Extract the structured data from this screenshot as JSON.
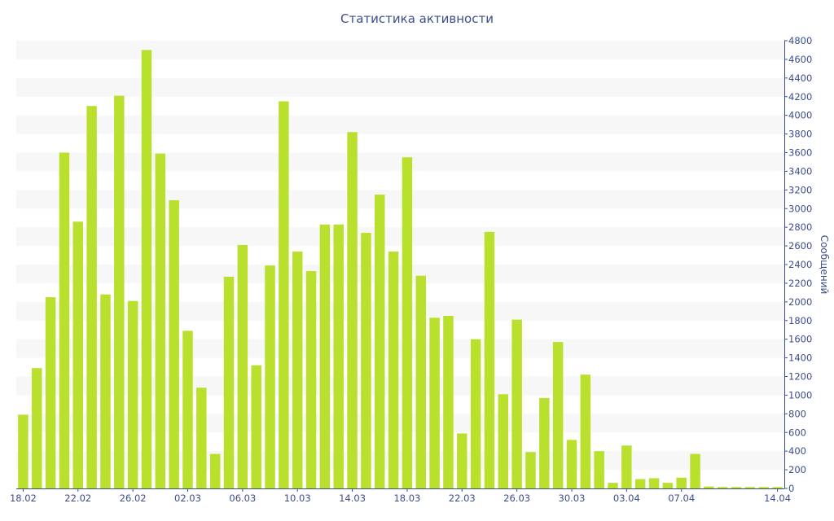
{
  "chart_data": {
    "type": "bar",
    "title": "Статистика активности",
    "xlabel": "",
    "ylabel": "Сообщений",
    "ylim": [
      0,
      4800
    ],
    "y_tick_step": 200,
    "grid": "horizontal alternating bands",
    "legend": "none",
    "y_axis_position": "right",
    "bar_color": "#b8e02c",
    "band_color": "#f7f7f7",
    "text_color": "#3c4d8c",
    "categories": [
      "18.02",
      "19.02",
      "20.02",
      "21.02",
      "22.02",
      "23.02",
      "24.02",
      "25.02",
      "26.02",
      "27.02",
      "28.02",
      "01.03",
      "02.03",
      "03.03",
      "04.03",
      "05.03",
      "06.03",
      "07.03",
      "08.03",
      "09.03",
      "10.03",
      "11.03",
      "12.03",
      "13.03",
      "14.03",
      "15.03",
      "16.03",
      "17.03",
      "18.03",
      "19.03",
      "20.03",
      "21.03",
      "22.03",
      "23.03",
      "24.03",
      "25.03",
      "26.03",
      "27.03",
      "28.03",
      "29.03",
      "30.03",
      "31.03",
      "01.04",
      "02.04",
      "03.04",
      "04.04",
      "05.04",
      "06.04",
      "07.04",
      "08.04",
      "09.04",
      "10.04",
      "11.04",
      "12.04",
      "13.04",
      "14.04"
    ],
    "x_tick_labels": [
      "18.02",
      "22.02",
      "26.02",
      "02.03",
      "06.03",
      "10.03",
      "14.03",
      "18.03",
      "22.03",
      "26.03",
      "30.03",
      "03.04",
      "07.04",
      "14.04"
    ],
    "values": [
      790,
      1290,
      2050,
      3600,
      2860,
      4100,
      2080,
      4210,
      2010,
      4700,
      3590,
      3090,
      1690,
      1080,
      370,
      2270,
      2610,
      1320,
      2390,
      4150,
      2540,
      2330,
      2830,
      2830,
      3820,
      2740,
      3150,
      2540,
      3550,
      2280,
      1830,
      1850,
      590,
      1600,
      2750,
      1010,
      1810,
      390,
      970,
      1570,
      520,
      1220,
      400,
      60,
      460,
      100,
      110,
      60,
      115,
      370,
      20,
      15,
      15,
      15,
      15,
      15
    ]
  }
}
